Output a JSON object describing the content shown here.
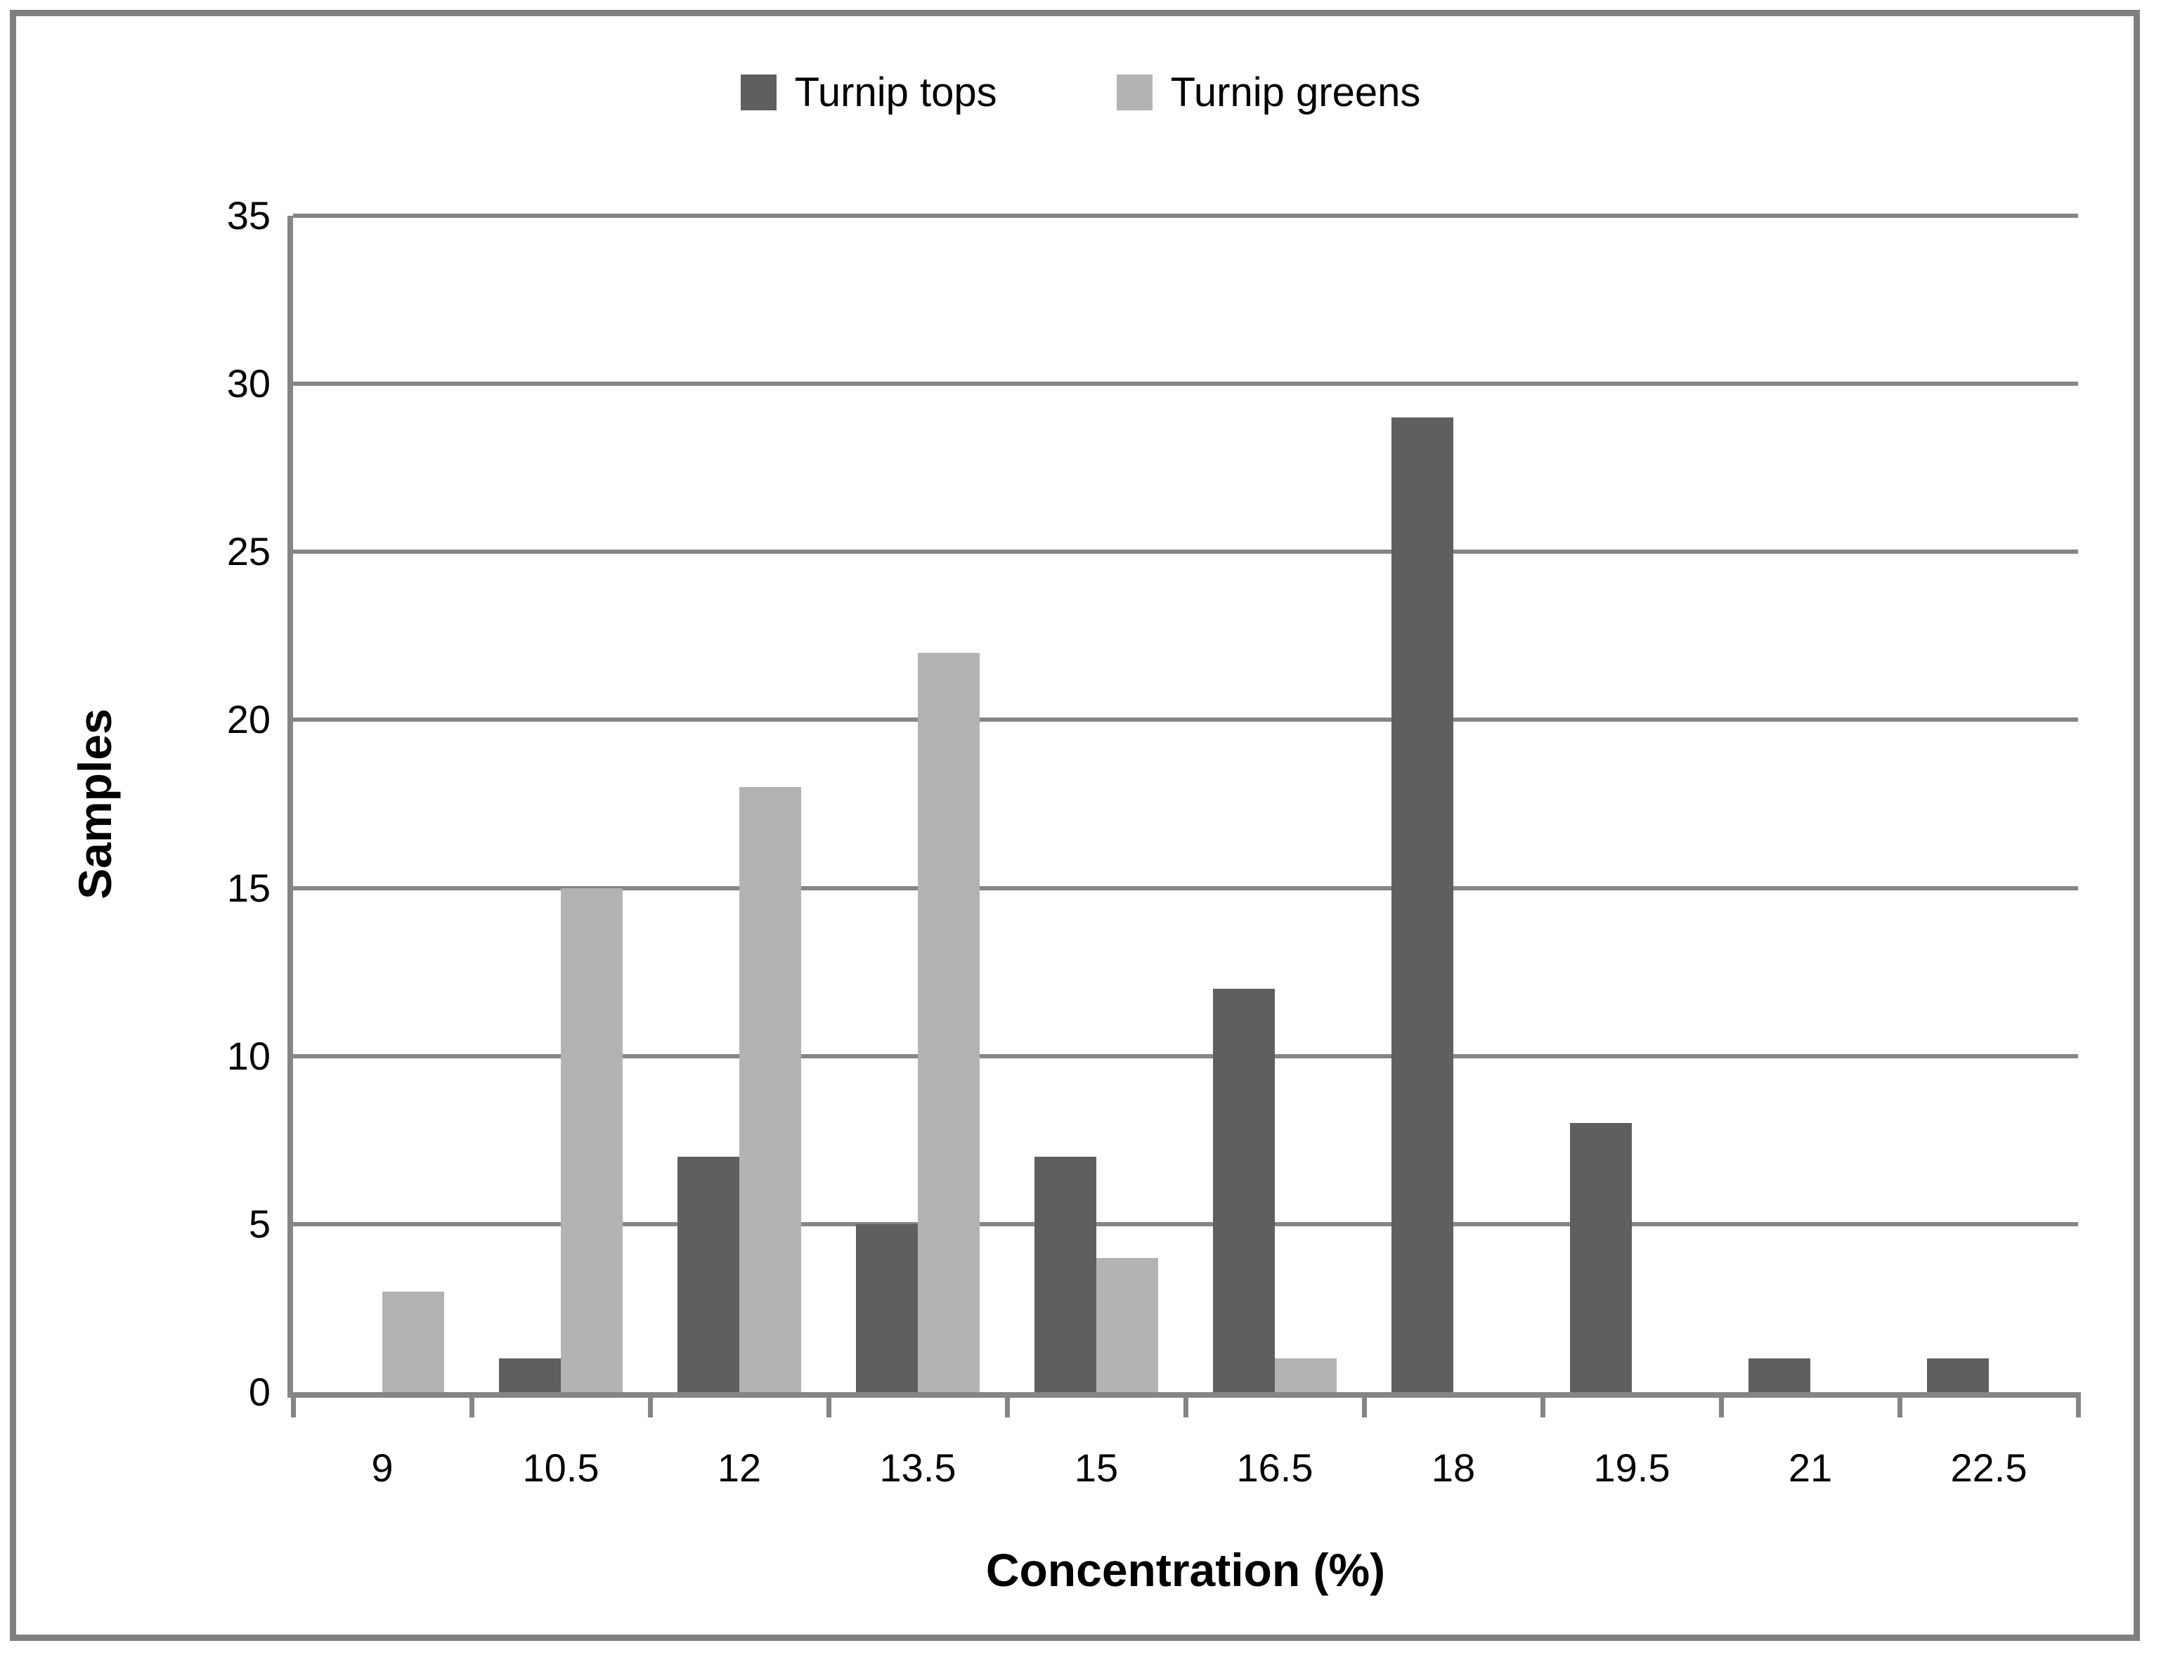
{
  "colors": {
    "series_dark": "#5F5F5F",
    "series_light": "#B3B3B3",
    "grid": "#858585",
    "axis": "#858585",
    "frame_border": "#7F7F7F",
    "text": "#000000",
    "background": "#FFFFFF"
  },
  "legend": {
    "items": [
      {
        "label": "Turnip tops",
        "color": "#5F5F5F"
      },
      {
        "label": "Turnip greens",
        "color": "#B3B3B3"
      }
    ]
  },
  "chart_data": {
    "type": "bar",
    "title": "",
    "xlabel": "Concentration (%)",
    "ylabel": "Samples",
    "categories": [
      "9",
      "10.5",
      "12",
      "13.5",
      "15",
      "16.5",
      "18",
      "19.5",
      "21",
      "22.5"
    ],
    "series": [
      {
        "name": "Turnip tops",
        "color": "#5F5F5F",
        "values": [
          0,
          1,
          7,
          5,
          7,
          12,
          29,
          8,
          1,
          1
        ]
      },
      {
        "name": "Turnip greens",
        "color": "#B3B3B3",
        "values": [
          3,
          15,
          18,
          22,
          4,
          1,
          0,
          0,
          0,
          0
        ]
      }
    ],
    "ylim": [
      0,
      35
    ],
    "yticks": [
      0,
      5,
      10,
      15,
      20,
      25,
      30,
      35
    ],
    "grid": "horizontal",
    "legend_position": "top-center"
  }
}
